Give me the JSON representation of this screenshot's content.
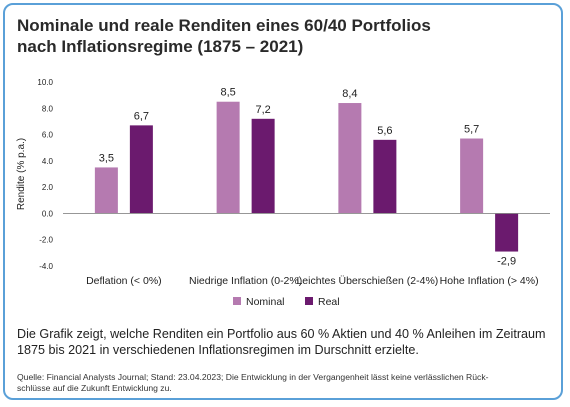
{
  "title_lines": [
    "Nominale und reale Renditen eines 60/40 Portfolios",
    "nach Inflationsregime (1875 – 2021)"
  ],
  "chart_data": {
    "type": "bar",
    "categories": [
      "Deflation (< 0%)",
      "Niedrige Inflation (0-2%)",
      "Leichtes Überschießen (2-4%)",
      "Hohe Inflation (> 4%)"
    ],
    "series": [
      {
        "name": "Nominal",
        "values": [
          3.5,
          8.5,
          8.4,
          5.7
        ],
        "labels": [
          "3,5",
          "8,5",
          "8,4",
          "5,7"
        ],
        "color": "#b57ab0"
      },
      {
        "name": "Real",
        "values": [
          6.7,
          7.2,
          5.6,
          -2.9
        ],
        "labels": [
          "6,7",
          "7,2",
          "5,6",
          "-2,9"
        ],
        "color": "#6b1a6e"
      }
    ],
    "ylabel": "Rendite (% p.a.)",
    "ylim": [
      -4,
      10
    ],
    "yticks": [
      10,
      8,
      6,
      4,
      2,
      0,
      -2,
      -4
    ],
    "ytick_labels": [
      "10.0",
      "8.0",
      "6.0",
      "4.0",
      "2.0",
      "0.0",
      "-2.0",
      "-4.0"
    ],
    "legend_position": "bottom",
    "grid": false
  },
  "description": "Die Grafik zeigt, welche Renditen ein Portfolio aus 60 % Aktien und 40 % Anleihen im Zeitraum 1875 bis 2021 in verschiedenen Inflationsregimen im Durschnitt erzielte.",
  "source_lines": [
    "Quelle: Financial Analysts Journal; Stand: 23.04.2023; Die Entwicklung in der Vergangenheit lässt keine verlässlichen Rück-",
    "schlüsse auf die Zukunft Entwicklung zu."
  ],
  "colors": {
    "border": "#5aa0d8",
    "nominal": "#b57ab0",
    "real": "#6b1a6e"
  }
}
